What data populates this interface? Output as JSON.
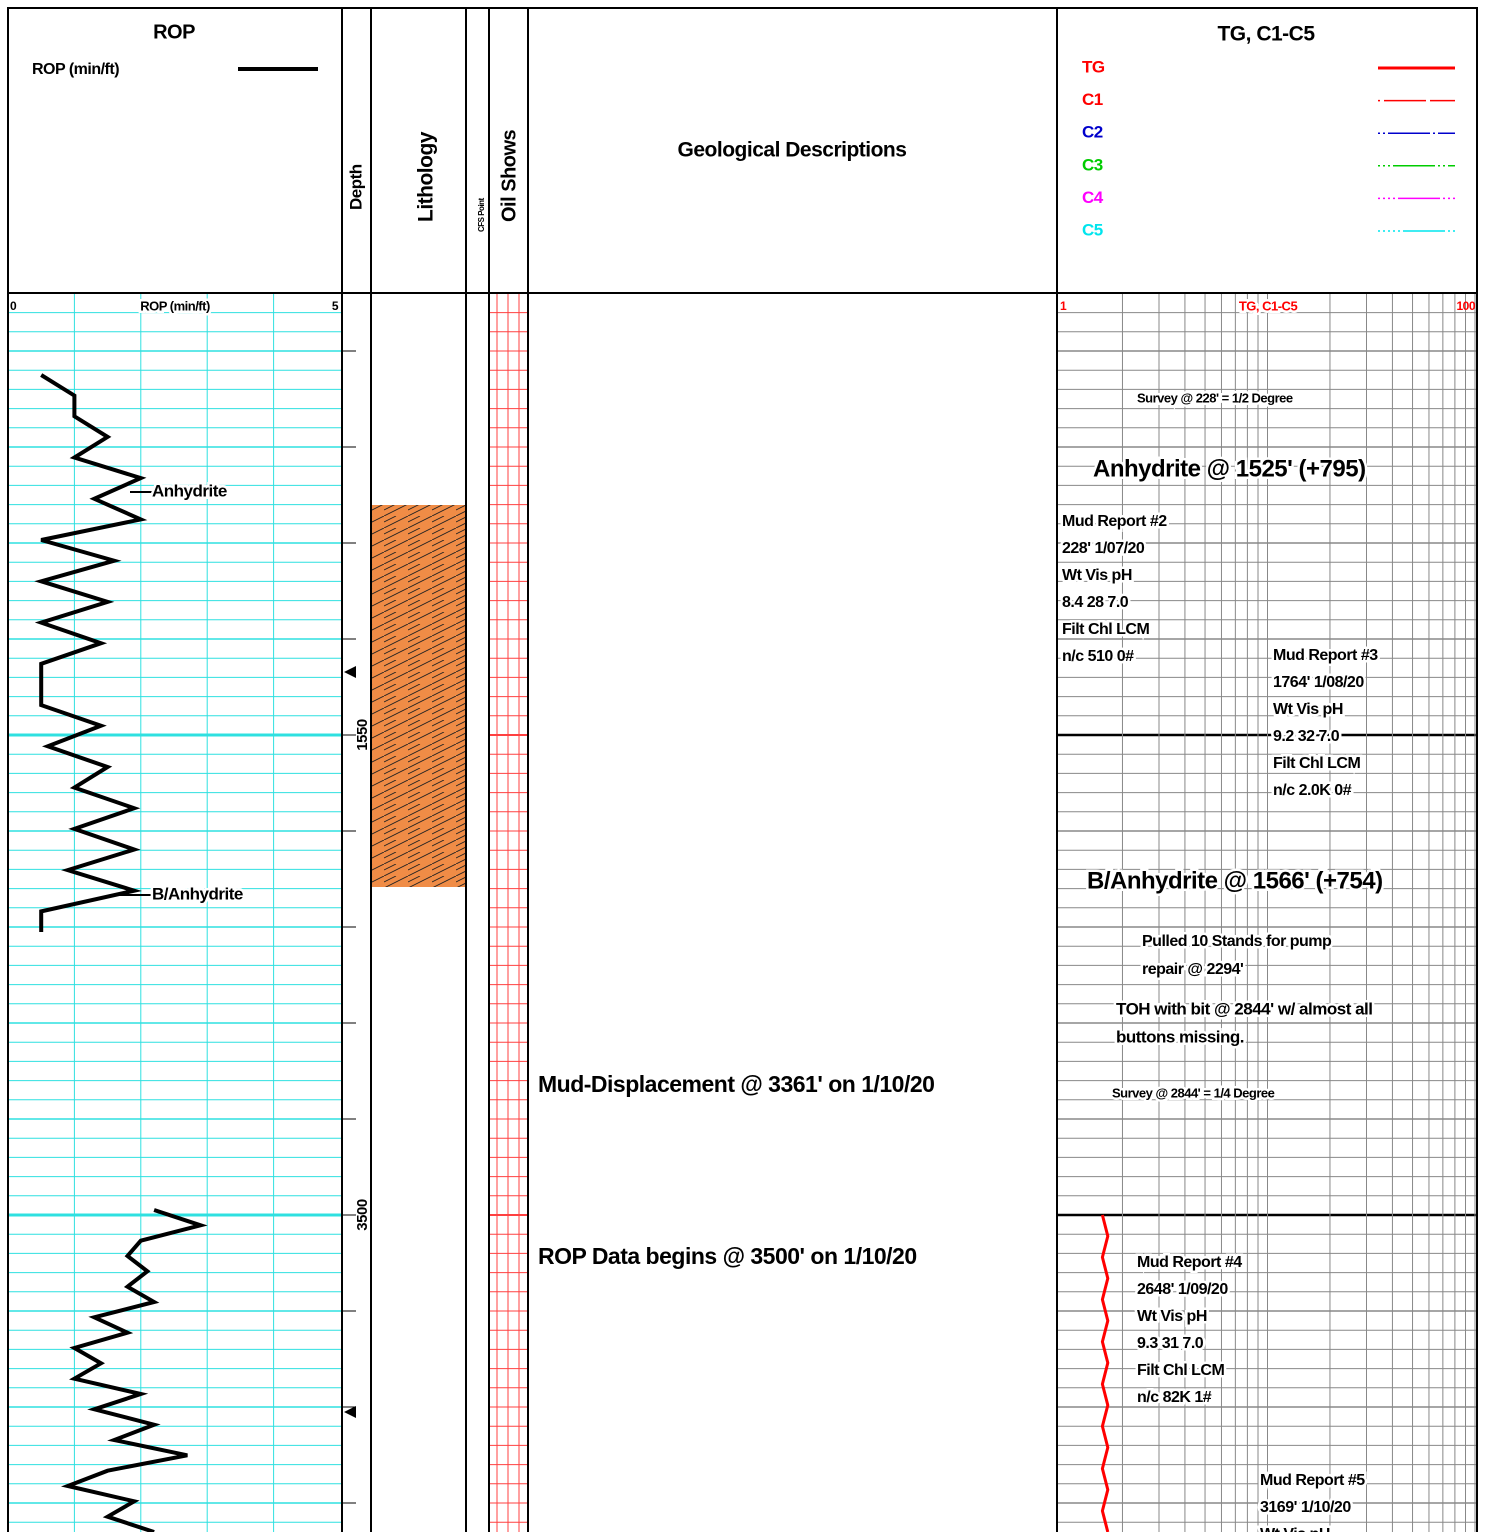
{
  "rop_header": {
    "title": "ROP",
    "legend": "ROP (min/ft)"
  },
  "columns": {
    "depth": "Depth",
    "lithology": "Lithology",
    "cfs": "CFS Point",
    "oil_shows": "Oil Shows",
    "geo": "Geological Descriptions"
  },
  "gas_header": {
    "title": "TG, C1-C5",
    "legend": [
      {
        "name": "TG",
        "color": "#ff0000"
      },
      {
        "name": "C1",
        "color": "#ff0000"
      },
      {
        "name": "C2",
        "color": "#0000cc"
      },
      {
        "name": "C3",
        "color": "#00cc00"
      },
      {
        "name": "C4",
        "color": "#ff00ff"
      },
      {
        "name": "C5",
        "color": "#00e5ee"
      }
    ]
  },
  "rop_scale": {
    "label": "ROP (min/ft)",
    "xlim": [
      0,
      5
    ]
  },
  "gas_scale": {
    "label": "TG, C1-C5",
    "xlim": [
      1,
      100
    ]
  },
  "depth_labels": [
    1550,
    3500
  ],
  "rop_annotations": [
    "Anhydrite",
    "B/Anhydrite"
  ],
  "geo_notes": [
    "Mud-Displacement @ 3361' on 1/10/20",
    "ROP Data begins @ 3500' on 1/10/20"
  ],
  "gas_notes": [
    [
      "Survey @ 228' = 1/2 Degree"
    ],
    [
      "Anhydrite @ 1525' (+795)"
    ],
    [
      "Mud Report #2",
      "228'    1/07/20",
      "Wt    Vis    pH",
      "8.4    28    7.0",
      "Filt    Chl    LCM",
      "n/c    510    0#"
    ],
    [
      "Mud Report #3",
      "1764'    1/08/20",
      "Wt    Vis    pH",
      "9.2    32    7.0",
      "Filt    Chl    LCM",
      "n/c    2.0K    0#"
    ],
    [
      "B/Anhydrite @ 1566' (+754)"
    ],
    [
      "Pulled 10 Stands for pump",
      "repair @ 2294'"
    ],
    [
      "TOH with bit @ 2844' w/ almost all",
      "buttons missing."
    ],
    [
      "Survey @ 2844' = 1/4 Degree"
    ],
    [
      "Mud Report #4",
      "2648'    1/09/20",
      "Wt    Vis    pH",
      "9.3    31    7.0",
      "Filt    Chl    LCM",
      "n/c    82K    1#"
    ],
    [
      "Mud Report #5",
      "3169'    1/10/20",
      "Wt    Vis    pH"
    ]
  ],
  "rop_curves": [
    [
      0.5,
      1.0,
      1.0,
      1.5,
      1.0,
      2.0,
      1.3,
      2.0,
      0.5,
      1.6,
      0.5,
      1.5,
      0.5,
      1.4,
      0.5,
      0.5,
      0.5,
      1.4,
      0.6,
      1.5,
      1.0,
      1.9,
      1.0,
      1.9,
      0.9,
      1.9,
      0.5,
      0.5
    ],
    [
      2.2,
      2.9,
      2.0,
      1.8,
      2.1,
      1.8,
      2.2,
      1.3,
      1.8,
      1.0,
      1.4,
      1.0,
      2.0,
      1.3,
      2.2,
      1.6,
      2.7,
      1.5,
      0.9,
      1.9,
      1.5,
      2.2
    ]
  ],
  "tg_curve": [
    1.6,
    1.7,
    1.6,
    1.7,
    1.6,
    1.7,
    1.6,
    1.7,
    1.6,
    1.7,
    1.6,
    1.7,
    1.6,
    1.7,
    1.6,
    1.7
  ]
}
